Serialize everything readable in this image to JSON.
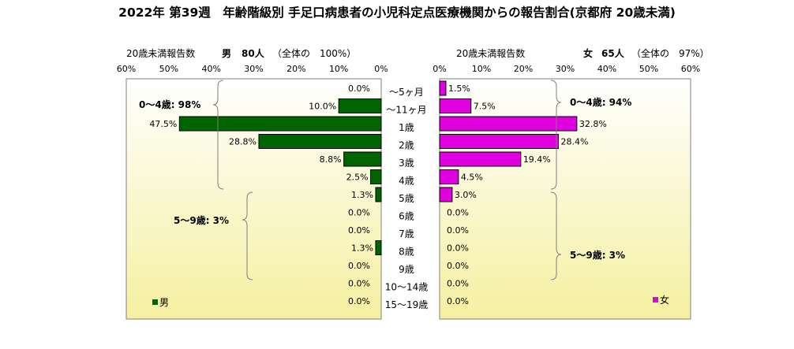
{
  "title": "2022年 第39週　年齢階級別 手足口病患者の小児科定点医療機関からの報告割合(京都府 20歳未満)",
  "colors": {
    "male_bar": "#006400",
    "female_bar": "#E000E0",
    "bg_top": "#ffffff",
    "bg_bottom": "#F5F0A0"
  },
  "chart_data": [
    {
      "type": "bar",
      "orientation": "horizontal",
      "direction": "right-to-left",
      "panel": "male",
      "header_label": "20歳未満報告数",
      "header_sex": "男",
      "header_count": "80人",
      "header_share": "（全体の　100%）",
      "legend": "男",
      "legend_placement": "bottom-left",
      "xlim": [
        0,
        60
      ],
      "ticks": [
        "60%",
        "50%",
        "40%",
        "30%",
        "20%",
        "10%",
        "0%"
      ],
      "categories": [
        "～5ヶ月",
        "～11ヶ月",
        "1歳",
        "2歳",
        "3歳",
        "4歳",
        "5歳",
        "6歳",
        "7歳",
        "8歳",
        "9歳",
        "10～14歳",
        "15～19歳"
      ],
      "values": [
        0.0,
        10.0,
        47.5,
        28.8,
        8.8,
        2.5,
        1.3,
        0.0,
        0.0,
        1.3,
        0.0,
        0.0,
        0.0
      ],
      "value_labels": [
        "0.0%",
        "10.0%",
        "47.5%",
        "28.8%",
        "8.8%",
        "2.5%",
        "1.3%",
        "0.0%",
        "0.0%",
        "1.3%",
        "0.0%",
        "0.0%",
        "0.0%"
      ],
      "annotations": [
        "0～4歳: 98%",
        "5～9歳: 3%"
      ]
    },
    {
      "type": "bar",
      "orientation": "horizontal",
      "direction": "left-to-right",
      "panel": "female",
      "header_label": "20歳未満報告数",
      "header_sex": "女",
      "header_count": "65人",
      "header_share": "（全体の　97%）",
      "legend": "女",
      "legend_placement": "bottom-right",
      "xlim": [
        0,
        60
      ],
      "ticks": [
        "0%",
        "10%",
        "20%",
        "30%",
        "40%",
        "50%",
        "60%"
      ],
      "categories": [
        "～5ヶ月",
        "～11ヶ月",
        "1歳",
        "2歳",
        "3歳",
        "4歳",
        "5歳",
        "6歳",
        "7歳",
        "8歳",
        "9歳",
        "10～14歳",
        "15～19歳"
      ],
      "values": [
        1.5,
        7.5,
        32.8,
        28.4,
        19.4,
        4.5,
        3.0,
        0.0,
        0.0,
        0.0,
        0.0,
        0.0,
        0.0
      ],
      "value_labels": [
        "1.5%",
        "7.5%",
        "32.8%",
        "28.4%",
        "19.4%",
        "4.5%",
        "3.0%",
        "0.0%",
        "0.0%",
        "0.0%",
        "0.0%",
        "0.0%",
        "0.0%"
      ],
      "annotations": [
        "0～4歳: 94%",
        "5～9歳: 3%"
      ]
    }
  ]
}
